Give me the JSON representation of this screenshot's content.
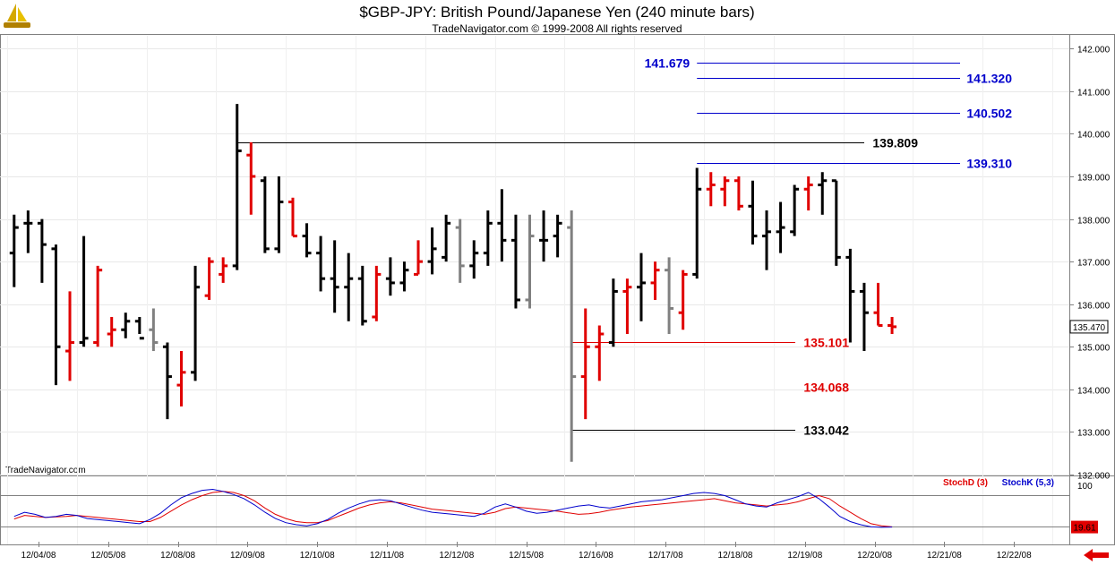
{
  "header": {
    "title": "$GBP-JPY:  British Pound/Japanese Yen  (240 minute bars)",
    "subtitle": "TradeNavigator.com © 1999-2008 All rights reserved"
  },
  "watermark": "TradeNavigator.com",
  "logo_icon": "sailboat-logo-icon",
  "nav_icon": "back-arrow-icon",
  "chart_data": [
    {
      "type": "ohlc",
      "ylim": [
        132,
        142.3
      ],
      "yticks": [
        "132.000",
        "133.000",
        "134.000",
        "135.000",
        "136.000",
        "137.000",
        "138.000",
        "139.000",
        "140.000",
        "141.000",
        "142.000"
      ],
      "ytick_values": [
        132,
        133,
        134,
        135,
        136,
        137,
        138,
        139,
        140,
        141,
        142
      ],
      "xticks": [
        "12/04/08",
        "12/05/08",
        "12/08/08",
        "12/09/08",
        "12/10/08",
        "12/11/08",
        "12/12/08",
        "12/15/08",
        "12/16/08",
        "12/17/08",
        "12/18/08",
        "12/19/08",
        "12/20/08",
        "12/21/08",
        "12/22/08"
      ],
      "bars_per_day": 5,
      "last_price": "135.470",
      "colors": {
        "up": "#e00000",
        "down": "#000000",
        "neutral": "#808080"
      },
      "bars": [
        {
          "o": 137.2,
          "h": 138.1,
          "l": 136.4,
          "c": 137.8,
          "d": "down"
        },
        {
          "o": 137.9,
          "h": 138.2,
          "l": 137.2,
          "c": 137.9,
          "d": "down"
        },
        {
          "o": 137.9,
          "h": 138.0,
          "l": 136.5,
          "c": 137.4,
          "d": "down"
        },
        {
          "o": 137.3,
          "h": 137.4,
          "l": 134.1,
          "c": 135.0,
          "d": "down"
        },
        {
          "o": 134.9,
          "h": 136.3,
          "l": 134.2,
          "c": 135.1,
          "d": "up"
        },
        {
          "o": 135.1,
          "h": 137.6,
          "l": 135.0,
          "c": 135.2,
          "d": "down"
        },
        {
          "o": 135.1,
          "h": 136.9,
          "l": 135.0,
          "c": 136.8,
          "d": "up"
        },
        {
          "o": 135.3,
          "h": 135.7,
          "l": 135.0,
          "c": 135.4,
          "d": "up"
        },
        {
          "o": 135.4,
          "h": 135.8,
          "l": 135.2,
          "c": 135.6,
          "d": "down"
        },
        {
          "o": 135.6,
          "h": 135.7,
          "l": 135.3,
          "c": 135.2,
          "d": "down"
        },
        {
          "o": 135.4,
          "h": 135.9,
          "l": 134.9,
          "c": 135.1,
          "d": "neutral"
        },
        {
          "o": 135.0,
          "h": 135.1,
          "l": 133.3,
          "c": 134.3,
          "d": "down"
        },
        {
          "o": 134.1,
          "h": 134.9,
          "l": 133.6,
          "c": 134.4,
          "d": "up"
        },
        {
          "o": 134.4,
          "h": 136.9,
          "l": 134.2,
          "c": 136.4,
          "d": "down"
        },
        {
          "o": 136.2,
          "h": 137.1,
          "l": 136.1,
          "c": 137.0,
          "d": "up"
        },
        {
          "o": 136.7,
          "h": 137.1,
          "l": 136.5,
          "c": 136.9,
          "d": "up"
        },
        {
          "o": 136.9,
          "h": 140.7,
          "l": 136.8,
          "c": 139.6,
          "d": "down"
        },
        {
          "o": 139.5,
          "h": 139.8,
          "l": 138.1,
          "c": 139.0,
          "d": "up"
        },
        {
          "o": 138.9,
          "h": 139.0,
          "l": 137.2,
          "c": 137.3,
          "d": "down"
        },
        {
          "o": 137.3,
          "h": 139.0,
          "l": 137.2,
          "c": 138.4,
          "d": "down"
        },
        {
          "o": 138.4,
          "h": 138.5,
          "l": 137.6,
          "c": 137.6,
          "d": "up"
        },
        {
          "o": 137.6,
          "h": 137.9,
          "l": 137.1,
          "c": 137.2,
          "d": "down"
        },
        {
          "o": 137.2,
          "h": 137.6,
          "l": 136.3,
          "c": 136.6,
          "d": "down"
        },
        {
          "o": 136.6,
          "h": 137.5,
          "l": 135.8,
          "c": 136.4,
          "d": "down"
        },
        {
          "o": 136.4,
          "h": 137.2,
          "l": 135.6,
          "c": 136.6,
          "d": "down"
        },
        {
          "o": 136.6,
          "h": 136.9,
          "l": 135.5,
          "c": 135.6,
          "d": "down"
        },
        {
          "o": 135.7,
          "h": 136.9,
          "l": 135.6,
          "c": 136.7,
          "d": "up"
        },
        {
          "o": 136.6,
          "h": 137.1,
          "l": 136.2,
          "c": 136.5,
          "d": "down"
        },
        {
          "o": 136.5,
          "h": 137.0,
          "l": 136.3,
          "c": 136.8,
          "d": "down"
        },
        {
          "o": 136.7,
          "h": 137.5,
          "l": 136.7,
          "c": 137.0,
          "d": "up"
        },
        {
          "o": 137.0,
          "h": 137.8,
          "l": 136.7,
          "c": 137.3,
          "d": "down"
        },
        {
          "o": 137.1,
          "h": 138.1,
          "l": 137.0,
          "c": 137.9,
          "d": "down"
        },
        {
          "o": 137.8,
          "h": 138.0,
          "l": 136.5,
          "c": 136.9,
          "d": "neutral"
        },
        {
          "o": 136.9,
          "h": 137.5,
          "l": 136.6,
          "c": 137.2,
          "d": "down"
        },
        {
          "o": 137.2,
          "h": 138.2,
          "l": 136.9,
          "c": 137.9,
          "d": "down"
        },
        {
          "o": 137.9,
          "h": 138.7,
          "l": 137.0,
          "c": 137.5,
          "d": "down"
        },
        {
          "o": 137.5,
          "h": 138.1,
          "l": 135.9,
          "c": 136.1,
          "d": "down"
        },
        {
          "o": 136.1,
          "h": 138.1,
          "l": 135.9,
          "c": 137.6,
          "d": "neutral"
        },
        {
          "o": 137.5,
          "h": 138.2,
          "l": 137.0,
          "c": 137.5,
          "d": "down"
        },
        {
          "o": 137.6,
          "h": 138.1,
          "l": 137.1,
          "c": 137.9,
          "d": "down"
        },
        {
          "o": 137.8,
          "h": 138.2,
          "l": 132.3,
          "c": 134.3,
          "d": "neutral"
        },
        {
          "o": 134.3,
          "h": 135.9,
          "l": 133.3,
          "c": 135.0,
          "d": "up"
        },
        {
          "o": 135.0,
          "h": 135.5,
          "l": 134.2,
          "c": 135.3,
          "d": "up"
        },
        {
          "o": 135.1,
          "h": 136.6,
          "l": 135.0,
          "c": 136.3,
          "d": "down"
        },
        {
          "o": 136.3,
          "h": 136.6,
          "l": 135.3,
          "c": 136.4,
          "d": "up"
        },
        {
          "o": 136.4,
          "h": 137.2,
          "l": 135.6,
          "c": 136.5,
          "d": "down"
        },
        {
          "o": 136.5,
          "h": 137.0,
          "l": 136.1,
          "c": 136.8,
          "d": "up"
        },
        {
          "o": 136.8,
          "h": 137.1,
          "l": 135.3,
          "c": 135.9,
          "d": "neutral"
        },
        {
          "o": 135.8,
          "h": 136.8,
          "l": 135.4,
          "c": 136.7,
          "d": "up"
        },
        {
          "o": 136.7,
          "h": 139.2,
          "l": 136.6,
          "c": 138.7,
          "d": "down"
        },
        {
          "o": 138.7,
          "h": 139.1,
          "l": 138.3,
          "c": 138.8,
          "d": "up"
        },
        {
          "o": 138.7,
          "h": 139.0,
          "l": 138.3,
          "c": 138.9,
          "d": "up"
        },
        {
          "o": 138.9,
          "h": 139.0,
          "l": 138.2,
          "c": 138.3,
          "d": "up"
        },
        {
          "o": 138.3,
          "h": 138.9,
          "l": 137.4,
          "c": 137.6,
          "d": "down"
        },
        {
          "o": 137.6,
          "h": 138.2,
          "l": 136.8,
          "c": 137.7,
          "d": "down"
        },
        {
          "o": 137.7,
          "h": 138.4,
          "l": 137.2,
          "c": 137.8,
          "d": "down"
        },
        {
          "o": 137.7,
          "h": 138.8,
          "l": 137.6,
          "c": 138.7,
          "d": "down"
        },
        {
          "o": 138.7,
          "h": 139.0,
          "l": 138.2,
          "c": 138.8,
          "d": "up"
        },
        {
          "o": 138.8,
          "h": 139.1,
          "l": 138.1,
          "c": 138.9,
          "d": "down"
        },
        {
          "o": 138.9,
          "h": 138.9,
          "l": 136.9,
          "c": 137.1,
          "d": "down"
        },
        {
          "o": 137.1,
          "h": 137.3,
          "l": 135.1,
          "c": 136.3,
          "d": "down"
        },
        {
          "o": 136.3,
          "h": 136.5,
          "l": 134.9,
          "c": 135.8,
          "d": "down"
        },
        {
          "o": 135.8,
          "h": 136.5,
          "l": 135.5,
          "c": 135.5,
          "d": "up"
        },
        {
          "o": 135.5,
          "h": 135.7,
          "l": 135.3,
          "c": 135.47,
          "d": "up"
        }
      ],
      "levels": [
        {
          "label": "141.679",
          "value": 141.679,
          "color": "#0000cc",
          "label_side": "left",
          "start_bar": 49
        },
        {
          "label": "141.320",
          "value": 141.32,
          "color": "#0000cc",
          "label_side": "right",
          "start_bar": 49
        },
        {
          "label": "140.502",
          "value": 140.502,
          "color": "#0000cc",
          "label_side": "right",
          "start_bar": 49
        },
        {
          "label": "139.809",
          "value": 139.809,
          "color": "#000000",
          "label_side": "right",
          "start_bar": 16
        },
        {
          "label": "139.310",
          "value": 139.31,
          "color": "#0000cc",
          "label_side": "right",
          "start_bar": 49
        },
        {
          "label": "135.101",
          "value": 135.101,
          "color": "#e00000",
          "label_side": "right",
          "start_bar": 40
        },
        {
          "label": "134.068",
          "value": 134.068,
          "color": "#e00000",
          "label_side": "text",
          "start_bar": 40
        },
        {
          "label": "133.042",
          "value": 133.042,
          "color": "#000000",
          "label_side": "right",
          "start_bar": 40
        }
      ]
    },
    {
      "type": "line",
      "ylim": [
        0,
        110
      ],
      "yticks": [
        "100"
      ],
      "ytick_values": [
        100
      ],
      "reference_lines": [
        80,
        20
      ],
      "last_value": "19.61",
      "series": [
        {
          "name": "StochD (3)",
          "color": "#e00000",
          "values": [
            35,
            42,
            40,
            38,
            39,
            40,
            42,
            40,
            38,
            36,
            34,
            32,
            30,
            30,
            38,
            50,
            62,
            72,
            80,
            86,
            88,
            86,
            80,
            70,
            56,
            44,
            36,
            30,
            28,
            28,
            32,
            40,
            48,
            56,
            62,
            66,
            68,
            66,
            62,
            58,
            54,
            52,
            50,
            48,
            46,
            44,
            48,
            55,
            58,
            56,
            54,
            52,
            50,
            47,
            44,
            45,
            48,
            52,
            55,
            58,
            60,
            62,
            64,
            66,
            68,
            70,
            72,
            74,
            70,
            66,
            64,
            62,
            60,
            62,
            64,
            68,
            74,
            80,
            74,
            60,
            48,
            36,
            26,
            22,
            20
          ]
        },
        {
          "name": "StochK (5,3)",
          "color": "#0000cc",
          "values": [
            40,
            48,
            44,
            38,
            40,
            44,
            42,
            36,
            34,
            32,
            30,
            28,
            26,
            34,
            46,
            62,
            76,
            84,
            90,
            92,
            88,
            82,
            74,
            62,
            48,
            36,
            28,
            24,
            22,
            26,
            34,
            46,
            56,
            64,
            70,
            72,
            70,
            64,
            58,
            52,
            48,
            46,
            44,
            42,
            40,
            46,
            58,
            64,
            58,
            50,
            46,
            48,
            52,
            56,
            60,
            62,
            58,
            56,
            60,
            64,
            68,
            70,
            72,
            76,
            80,
            84,
            86,
            84,
            80,
            72,
            64,
            60,
            58,
            66,
            72,
            78,
            86,
            74,
            58,
            40,
            30,
            24,
            20,
            19,
            19.61
          ]
        }
      ]
    }
  ]
}
